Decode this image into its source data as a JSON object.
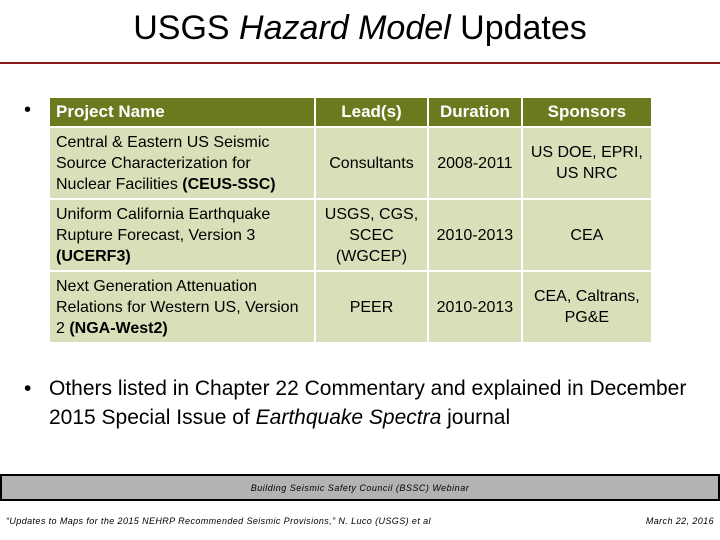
{
  "slide": {
    "title_prefix": "USGS ",
    "title_italic": "Hazard Model",
    "title_suffix": " Updates"
  },
  "table": {
    "bullet": "•",
    "headers": {
      "name": "Project Name",
      "lead": "Lead(s)",
      "duration": "Duration",
      "sponsors": "Sponsors"
    },
    "rows": [
      {
        "name_text": "Central & Eastern US Seismic Source Characterization for Nuclear Facilities ",
        "abbr": "(CEUS-SSC)",
        "lead": "Consultants",
        "duration": "2008-2011",
        "sponsors": "US DOE, EPRI, US NRC"
      },
      {
        "name_text": "Uniform California Earthquake Rupture Forecast, Version 3 ",
        "abbr": "(UCERF3)",
        "lead": "USGS, CGS, SCEC (WGCEP)",
        "duration": "2010-2013",
        "sponsors": "CEA"
      },
      {
        "name_text": "Next Generation Attenuation Relations for Western US, Version 2 ",
        "abbr": "(NGA-West2)",
        "lead": "PEER",
        "duration": "2010-2013",
        "sponsors": "CEA, Caltrans, PG&E"
      }
    ]
  },
  "note": {
    "bullet": "•",
    "text_before": "Others listed in Chapter 22 Commentary and explained in December 2015 Special Issue of ",
    "text_italic": "Earthquake Spectra",
    "text_after": " journal"
  },
  "footer": {
    "banner": "Building Seismic Safety Council (BSSC) Webinar",
    "left": "“Updates to Maps for the 2015 NEHRP Recommended Seismic Provisions,” N. Luco (USGS) et al",
    "right": "March 22, 2016"
  },
  "colors": {
    "header_bg": "#6b7a1e",
    "cell_bg": "#d9dfb8",
    "title_rule": "#8b1a1a"
  }
}
